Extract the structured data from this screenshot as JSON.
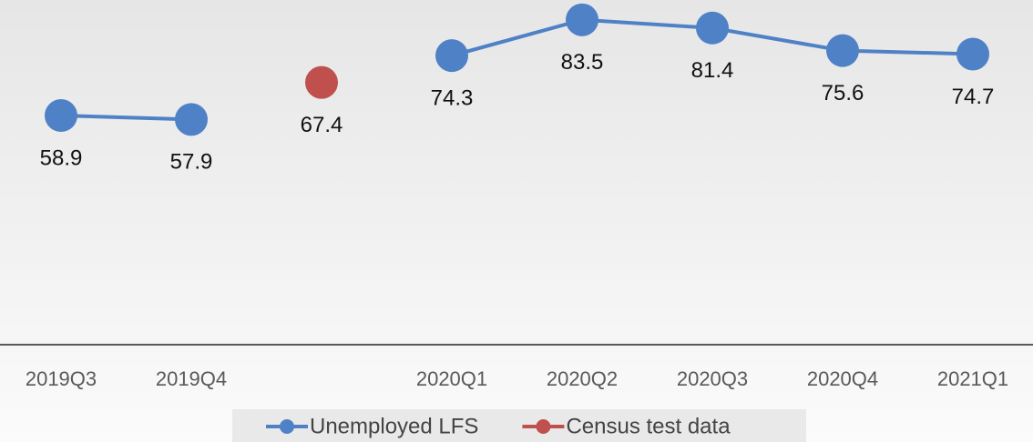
{
  "chart_data": {
    "type": "line",
    "categories": [
      "2019Q3",
      "2019Q4",
      null,
      "2020Q1",
      "2020Q2",
      "2020Q3",
      "2020Q4",
      "2021Q1"
    ],
    "series": [
      {
        "name": "Unemployed LFS",
        "color": "#4f81c6",
        "values": [
          58.9,
          57.9,
          null,
          74.3,
          83.5,
          81.4,
          75.6,
          74.7
        ]
      },
      {
        "name": "Census test data",
        "color": "#c0504d",
        "values": [
          null,
          null,
          67.4,
          null,
          null,
          null,
          null,
          null
        ]
      }
    ],
    "ylim": [
      0,
      88.6
    ]
  }
}
